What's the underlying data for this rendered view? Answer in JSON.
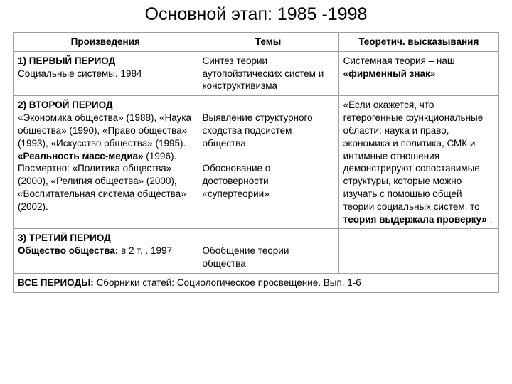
{
  "title": "Основной этап: 1985 -1998",
  "headers": {
    "c1": "Произведения",
    "c2": "Темы",
    "c3": "Теоретич. высказывания"
  },
  "row1": {
    "c1_b": "1) ПЕРВЫЙ ПЕРИОД",
    "c1_t": "Социальные системы. 1984",
    "c2": "Синтез теории аутопойэтических систем и конструктивизма",
    "c3_a": "Системная теория – наш ",
    "c3_b": "«фирменный знак»"
  },
  "row2": {
    "c1_b": "2) ВТОРОЙ ПЕРИОД",
    "c1_t1": "«Экономика общества» (1988), «Наука общества» (1990), «Право общества» (1993), «Искусство общества» (1995). ",
    "c1_b2": "«Реальность масс-медиа»",
    "c1_t2": " (1996). Посмертно: «Политика общества» (2000), «Религия общества» (2000), «Воспитательная система общества» (2002).",
    "c2_p1": "Выявление структурного сходства подсистем общества",
    "c2_p2": "Обоснование о достоверности «супертеории»",
    "c3_a": " «Если окажется, что гетерогенные функциональные области: наука и право, экономика и политика, СМК и интимные отношения демонстрируют сопоставимые структуры, которые можно изучать с помощью общей теории социальных систем, то ",
    "c3_b": "теория выдержала проверку»",
    "c3_c": " ."
  },
  "row3": {
    "c1_b1": "3) ТРЕТИЙ ПЕРИОД",
    "c1_b2": "Общество общества:",
    "c1_t": " в 2 т. . 1997",
    "c2": "Обобщение теории общества"
  },
  "footer": {
    "b": "ВСЕ ПЕРИОДЫ:  ",
    "t": "Сборники статей: Социологическое просвещение. Вып. 1-6"
  }
}
